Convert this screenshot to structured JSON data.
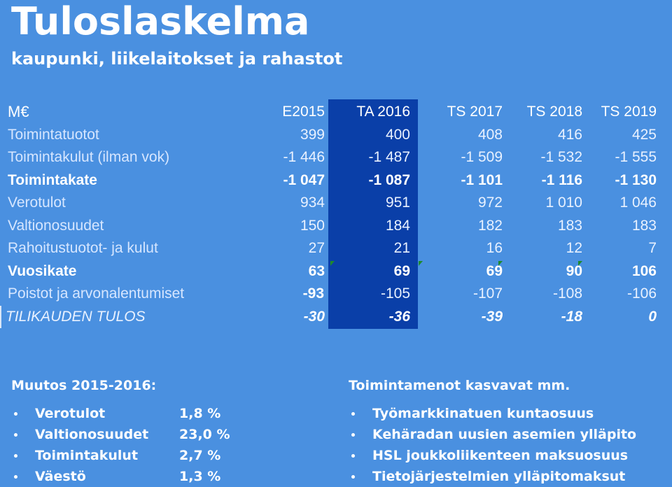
{
  "title": "Tuloslaskelma",
  "subtitle": "kaupunki, liikelaitokset ja rahastot",
  "table": {
    "headers": [
      "M€",
      "E2015",
      "TA 2016",
      "TS 2017",
      "TS 2018",
      "TS 2019"
    ],
    "rows": [
      {
        "label": "Toimintatuotot",
        "values": [
          "399",
          "400",
          "408",
          "416",
          "425"
        ]
      },
      {
        "label": "Toimintakulut (ilman vok)",
        "values": [
          "-1 446",
          "-1 487",
          "-1 509",
          "-1 532",
          "-1 555"
        ]
      },
      {
        "label": "Toimintakate",
        "values": [
          "-1 047",
          "-1 087",
          "-1 101",
          "-1 116",
          "-1 130"
        ]
      },
      {
        "label": "Verotulot",
        "values": [
          "934",
          "951",
          "972",
          "1 010",
          "1 046"
        ]
      },
      {
        "label": "Valtionosuudet",
        "values": [
          "150",
          "184",
          "182",
          "183",
          "183"
        ]
      },
      {
        "label": "Rahoitustuotot- ja kulut",
        "values": [
          "27",
          "21",
          "16",
          "12",
          "7"
        ]
      },
      {
        "label": "Vuosikate",
        "values": [
          "63",
          "69",
          "69",
          "90",
          "106"
        ]
      },
      {
        "label": "Poistot ja arvonalentumiset",
        "values": [
          "-93",
          "-105",
          "-107",
          "-108",
          "-106"
        ]
      },
      {
        "label": "TILIKAUDEN TULOS",
        "values": [
          "-30",
          "-36",
          "-39",
          "-18",
          "0"
        ]
      }
    ]
  },
  "changes": {
    "heading": "Muutos 2015-2016:",
    "items": [
      {
        "name": "Verotulot",
        "value": "1,8 %"
      },
      {
        "name": "Valtionosuudet",
        "value": "23,0 %"
      },
      {
        "name": "Toimintakulut",
        "value": "2,7 %"
      },
      {
        "name": "Väestö",
        "value": "1,3 %"
      }
    ]
  },
  "expenses": {
    "heading": "Toimintamenot kasvavat mm.",
    "items": [
      "Työmarkkinatuen kuntaosuus",
      "Kehäradan uusien asemien ylläpito",
      "HSL joukkoliikenteen maksuosuus",
      "Tietojärjestelmien ylläpitomaksut"
    ]
  },
  "colors": {
    "background": "#4a90e0",
    "highlight_column": "#0a3fa8",
    "marker": "#1f8a2c"
  }
}
